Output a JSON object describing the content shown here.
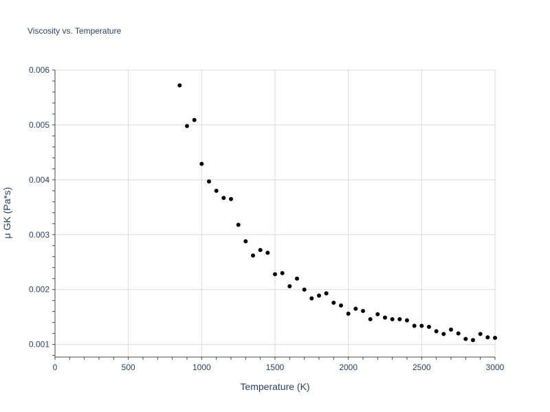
{
  "chart_data": {
    "type": "scatter",
    "title": "Viscosity vs. Temperature",
    "xlabel": "Temperature (K)",
    "ylabel": "μ GK (Pa*s)",
    "xlim": [
      0,
      3000
    ],
    "ylim": [
      0.00077,
      0.006
    ],
    "xticks": [
      0,
      500,
      1000,
      1500,
      2000,
      2500,
      3000
    ],
    "yticks": [
      0.001,
      0.002,
      0.003,
      0.004,
      0.005,
      0.006
    ],
    "xtick_labels": [
      "0",
      "500",
      "1000",
      "1500",
      "2000",
      "2500",
      "3000"
    ],
    "ytick_labels": [
      "0.001",
      "0.002",
      "0.003",
      "0.004",
      "0.005",
      "0.006"
    ],
    "grid": true,
    "marker_color": "#000000",
    "series": [
      {
        "x": [
          850,
          900,
          950,
          1000,
          1050,
          1100,
          1150,
          1200,
          1250,
          1300,
          1350,
          1400,
          1450,
          1500,
          1550,
          1600,
          1650,
          1700,
          1750,
          1800,
          1850,
          1900,
          1950,
          2000,
          2050,
          2100,
          2150,
          2200,
          2250,
          2300,
          2350,
          2400,
          2450,
          2500,
          2550,
          2600,
          2650,
          2700,
          2750,
          2800,
          2850,
          2900,
          2950,
          3000
        ],
        "y": [
          0.00572,
          0.00498,
          0.00509,
          0.00429,
          0.00397,
          0.0038,
          0.00367,
          0.00365,
          0.00318,
          0.00288,
          0.00262,
          0.00272,
          0.00267,
          0.00228,
          0.0023,
          0.00206,
          0.0022,
          0.002,
          0.00184,
          0.00189,
          0.00193,
          0.00176,
          0.00171,
          0.00156,
          0.00165,
          0.00161,
          0.00146,
          0.00155,
          0.00149,
          0.00146,
          0.00146,
          0.00144,
          0.00134,
          0.00134,
          0.00132,
          0.00124,
          0.00119,
          0.00127,
          0.0012,
          0.0011,
          0.00108,
          0.00119,
          0.00113,
          0.00112
        ]
      }
    ]
  }
}
